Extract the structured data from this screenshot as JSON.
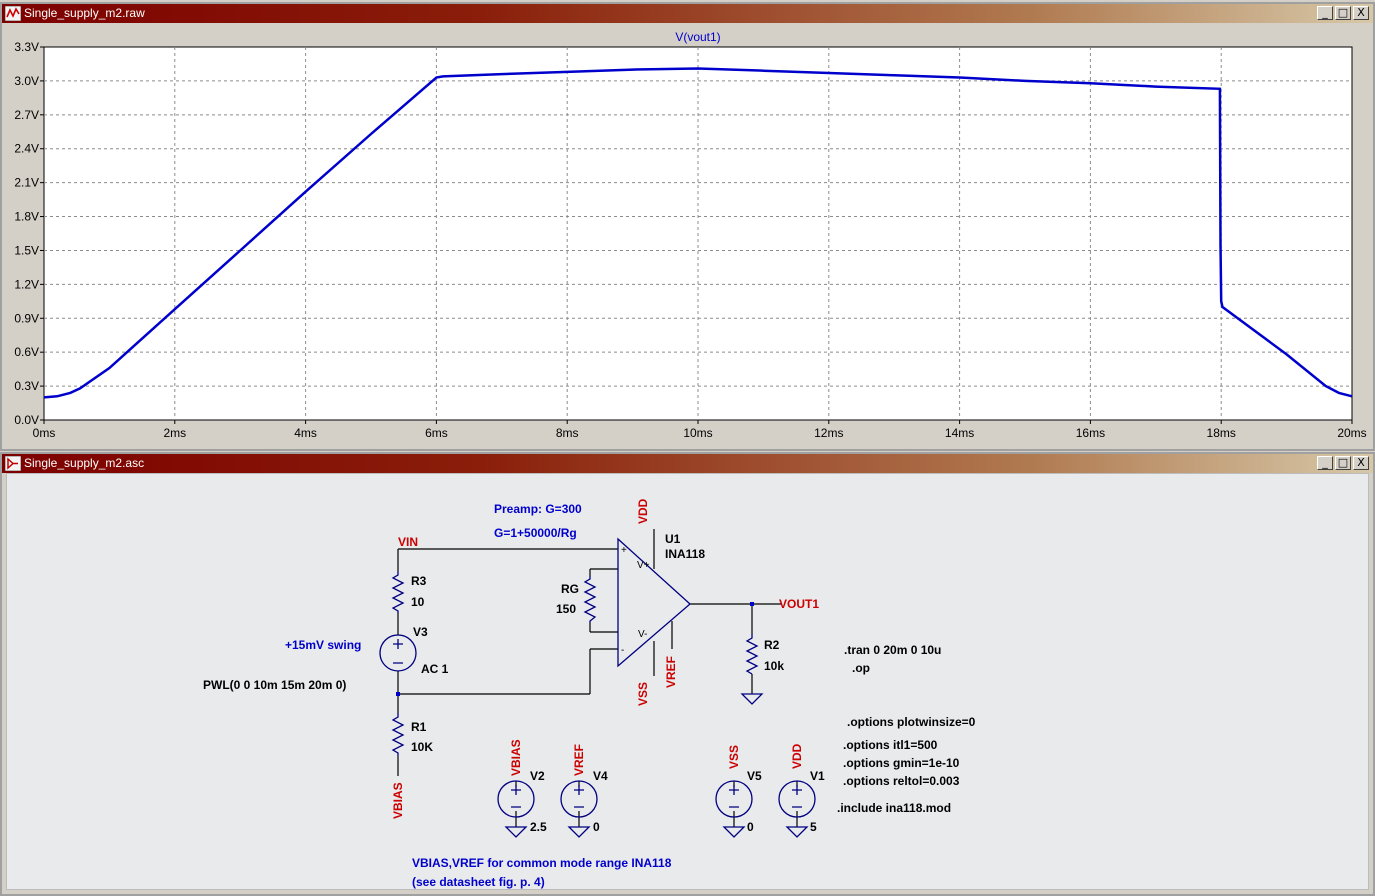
{
  "waveform_window": {
    "title": "Single_supply_m2.raw",
    "buttons": {
      "minimize": "_",
      "restore": "□",
      "close": "X"
    },
    "colors": {
      "trace": "#0000cc",
      "titlebar": "#7d0000",
      "grid": "#8c8c8c"
    }
  },
  "chart_data": {
    "type": "line",
    "title": "V(vout1)",
    "xlabel": "",
    "ylabel": "",
    "xlim": [
      0,
      20
    ],
    "ylim": [
      0,
      3.3
    ],
    "x_unit": "ms",
    "y_unit": "V",
    "grid": true,
    "x_ticks": [
      "0ms",
      "2ms",
      "4ms",
      "6ms",
      "8ms",
      "10ms",
      "12ms",
      "14ms",
      "16ms",
      "18ms",
      "20ms"
    ],
    "y_ticks": [
      "0.0V",
      "0.3V",
      "0.6V",
      "0.9V",
      "1.2V",
      "1.5V",
      "1.8V",
      "2.1V",
      "2.4V",
      "2.7V",
      "3.0V",
      "3.3V"
    ],
    "series": [
      {
        "color": "#0000cc",
        "x": [
          0,
          0.2,
          0.4,
          0.55,
          1,
          2,
          3,
          4,
          5,
          6,
          6.1,
          7,
          8,
          9,
          10,
          11,
          12,
          13,
          14,
          15,
          16,
          17,
          17.98,
          17.99,
          18.0,
          18.02,
          19,
          19.6,
          19.8,
          20
        ],
        "y": [
          0.2,
          0.21,
          0.24,
          0.28,
          0.46,
          0.98,
          1.5,
          2.02,
          2.53,
          3.03,
          3.04,
          3.06,
          3.08,
          3.1,
          3.11,
          3.09,
          3.07,
          3.05,
          3.03,
          3.0,
          2.98,
          2.95,
          2.93,
          1.55,
          1.05,
          1.0,
          0.58,
          0.3,
          0.24,
          0.21
        ]
      }
    ]
  },
  "schematic_window": {
    "title": "Single_supply_m2.asc",
    "buttons": {
      "minimize": "_",
      "restore": "□",
      "close": "X"
    },
    "colors": {
      "wire": "#000000",
      "component": "#000080",
      "net_label": "#cc0000",
      "comment": "#0000cc",
      "background": "#e9eaec"
    },
    "comments": {
      "preamp": "Preamp: G=300",
      "gain_formula": "G=1+50000/Rg",
      "swing": "+15mV swing",
      "note1": "VBIAS,VREF for common mode range INA118",
      "note2": "(see datasheet fig. p. 4)"
    },
    "nets": {
      "vin": "VIN",
      "vout": "VOUT1",
      "vdd_u1": "VDD",
      "vss_u1": "VSS",
      "vref_u1": "VREF",
      "vbias_r1": "VBIAS",
      "vbias_v2": "VBIAS",
      "vref_v4": "VREF",
      "vss_v5": "VSS",
      "vdd_v1": "VDD"
    },
    "components": {
      "u1_name": "U1",
      "u1_value": "INA118",
      "rg_name": "RG",
      "rg_value": "150",
      "r3_name": "R3",
      "r3_value": "10",
      "v3_name": "V3",
      "v3_value": "AC 1",
      "v3_pwl": "PWL(0 0 10m 15m 20m 0)",
      "r1_name": "R1",
      "r1_value": "10K",
      "r2_name": "R2",
      "r2_value": "10k",
      "v2_name": "V2",
      "v2_value": "2.5",
      "v4_name": "V4",
      "v4_value": "0",
      "v5_name": "V5",
      "v5_value": "0",
      "v1_name": "V1",
      "v1_value": "5",
      "pin_plus": "+",
      "pin_minus": "-",
      "pin_vplus": "V+",
      "pin_vminus": "V-"
    },
    "directives": {
      "tran": ".tran 0 20m 0 10u",
      "op": ".op",
      "plotwinsize": ".options plotwinsize=0",
      "itl1": ".options itl1=500",
      "gmin": ".options gmin=1e-10",
      "reltol": ".options reltol=0.003",
      "include": ".include ina118.mod"
    }
  }
}
